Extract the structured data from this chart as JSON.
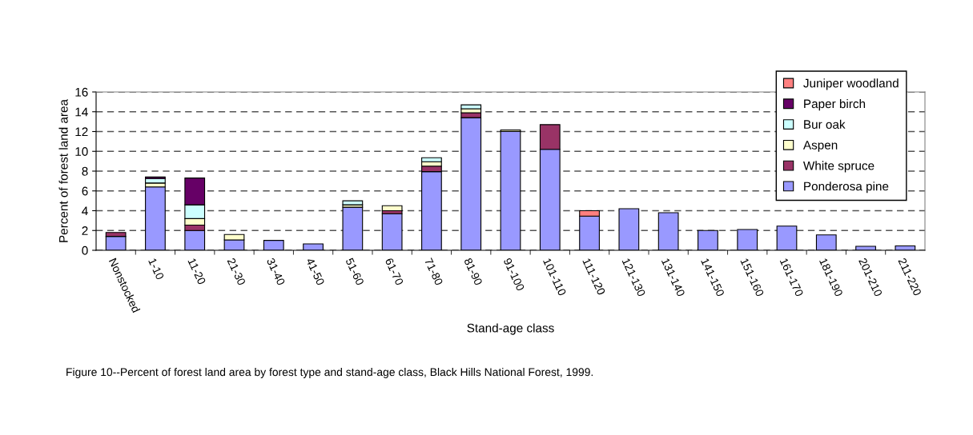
{
  "chart_data": {
    "type": "bar",
    "stacked": true,
    "xlabel": "Stand-age class",
    "ylabel": "Percent of forest land area",
    "categories": [
      "Nonstocked",
      "1-10",
      "11-20",
      "21-30",
      "31-40",
      "41-50",
      "51-60",
      "61-70",
      "71-80",
      "81-90",
      "91-100",
      "101-110",
      "111-120",
      "121-130",
      "131-140",
      "141-150",
      "151-160",
      "161-170",
      "181-190",
      "201-210",
      "211-220"
    ],
    "series": [
      {
        "name": "Ponderosa pine",
        "color": "#9999ff",
        "values": [
          1.4,
          6.4,
          2.0,
          1.05,
          1.0,
          0.65,
          4.35,
          3.7,
          7.95,
          13.4,
          12.0,
          10.2,
          3.45,
          4.2,
          3.8,
          2.0,
          2.1,
          2.45,
          1.55,
          0.4,
          0.45
        ]
      },
      {
        "name": "White spruce",
        "color": "#993366",
        "values": [
          0.4,
          null,
          0.55,
          null,
          null,
          null,
          null,
          0.3,
          0.55,
          0.5,
          null,
          2.5,
          null,
          null,
          null,
          null,
          null,
          null,
          null,
          null,
          null
        ]
      },
      {
        "name": "Aspen",
        "color": "#ffffcc",
        "values": [
          null,
          0.4,
          0.65,
          0.55,
          null,
          null,
          0.25,
          0.5,
          0.45,
          0.4,
          0.15,
          null,
          null,
          null,
          null,
          null,
          null,
          null,
          null,
          null,
          null
        ]
      },
      {
        "name": "Bur oak",
        "color": "#ccffff",
        "values": [
          null,
          0.45,
          1.4,
          null,
          null,
          null,
          0.4,
          null,
          0.4,
          0.4,
          null,
          null,
          null,
          null,
          null,
          null,
          null,
          null,
          null,
          null,
          null
        ]
      },
      {
        "name": "Paper birch",
        "color": "#660066",
        "values": [
          null,
          0.15,
          2.7,
          null,
          null,
          null,
          null,
          null,
          null,
          null,
          null,
          null,
          null,
          null,
          null,
          null,
          null,
          null,
          null,
          null,
          null
        ]
      },
      {
        "name": "Juniper woodland",
        "color": "#ff8080",
        "values": [
          null,
          null,
          null,
          null,
          null,
          null,
          null,
          null,
          null,
          null,
          null,
          null,
          0.55,
          null,
          null,
          null,
          null,
          null,
          null,
          null,
          null
        ]
      }
    ],
    "ylim": [
      0,
      16
    ],
    "yticks": [
      0,
      2,
      4,
      6,
      8,
      10,
      12,
      14,
      16
    ],
    "grid": "y",
    "legend": "top right",
    "annotations": [
      "Figure 10--Percent of forest land area by forest type and stand-age class, Black Hills National Forest, 1999."
    ]
  }
}
